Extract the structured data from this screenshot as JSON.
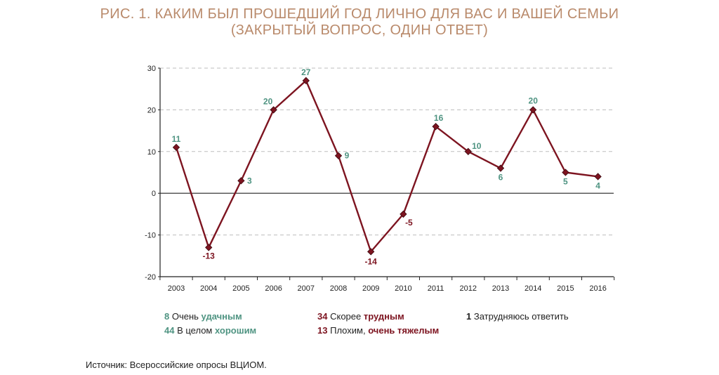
{
  "title_line1": "РИС. 1. КАКИМ БЫЛ ПРОШЕДШИЙ ГОД ЛИЧНО ДЛЯ ВАС И ВАШЕЙ СЕМЬИ",
  "title_line2": "(ЗАКРЫТЫЙ ВОПРОС, ОДИН ОТВЕТ)",
  "chart_data": {
    "type": "line",
    "x": [
      "2003",
      "2004",
      "2005",
      "2006",
      "2007",
      "2008",
      "2009",
      "2010",
      "2011",
      "2012",
      "2013",
      "2014",
      "2015",
      "2016"
    ],
    "series": [
      {
        "values": [
          11,
          -13,
          3,
          20,
          27,
          9,
          -14,
          -5,
          16,
          10,
          6,
          20,
          5,
          4
        ]
      }
    ],
    "ylim": [
      -20,
      30
    ],
    "yticks": [
      30,
      20,
      10,
      0,
      -10,
      -20
    ],
    "grid": "horizontal dashed",
    "xlabel": "",
    "ylabel": "",
    "line_color": "#7d1420",
    "marker_color": "#7d1420",
    "positive_label_color": "#4f9482",
    "negative_label_color": "#7d1420"
  },
  "legend": {
    "items": [
      {
        "number": "8",
        "text": "Очень ",
        "emph": "удачным",
        "color": "#4f9482"
      },
      {
        "number": "44",
        "text": "В целом ",
        "emph": "хорошим",
        "color": "#4f9482"
      },
      {
        "number": "34",
        "text": "Скорее ",
        "emph": "трудным",
        "color": "#7d1420"
      },
      {
        "number": "13",
        "text": "Плохим, ",
        "emph": "очень тяжелым",
        "color": "#7d1420"
      },
      {
        "number": "1",
        "text": "Затрудняюсь ответить",
        "emph": "",
        "color": "#222222"
      }
    ]
  },
  "source": "Источник: Всероссийские опросы ВЦИОМ."
}
